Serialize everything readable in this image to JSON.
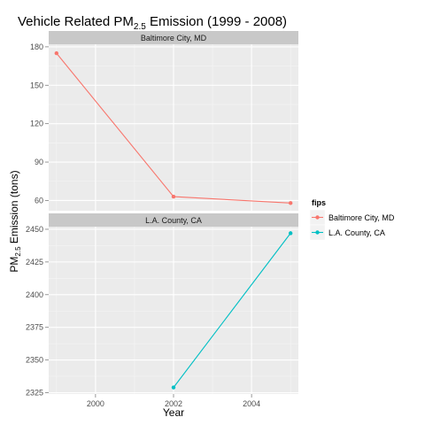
{
  "chart_data": {
    "type": "line",
    "title": {
      "main": "Vehicle Related PM",
      "sub": "2.5",
      "tail": " Emission (1999 - 2008)"
    },
    "xlabel": "Year",
    "ylabel": {
      "main": "PM",
      "sub": "2.5",
      "tail": " Emission (tons)"
    },
    "x_ticks": [
      "2000",
      "2002",
      "2004"
    ],
    "xlim": [
      1998.8,
      2005.2
    ],
    "legend": {
      "title": "fips",
      "position": "right",
      "items": [
        "Baltimore City, MD",
        "L.A. County, CA"
      ]
    },
    "facets": [
      {
        "label": "Baltimore City, MD",
        "color": "#F8766D",
        "ylim": [
          52,
          182
        ],
        "y_ticks": [
          "60",
          "90",
          "120",
          "150",
          "180"
        ],
        "x": [
          1999,
          2002,
          2005
        ],
        "values": [
          175,
          63,
          58
        ]
      },
      {
        "label": "L.A. County, CA",
        "color": "#00BFC4",
        "ylim": [
          2324,
          2452
        ],
        "y_ticks": [
          "2325",
          "2350",
          "2375",
          "2400",
          "2425",
          "2450"
        ],
        "x": [
          2002,
          2005
        ],
        "values": [
          2329,
          2447
        ]
      }
    ],
    "grid": true,
    "theme": {
      "panel_bg": "#EBEBEB",
      "grid_major": "#FFFFFF",
      "grid_minor": "#F5F5F5",
      "strip_bg": "#C8C8C8",
      "legend_key_bg": "#F2F2F2"
    }
  }
}
